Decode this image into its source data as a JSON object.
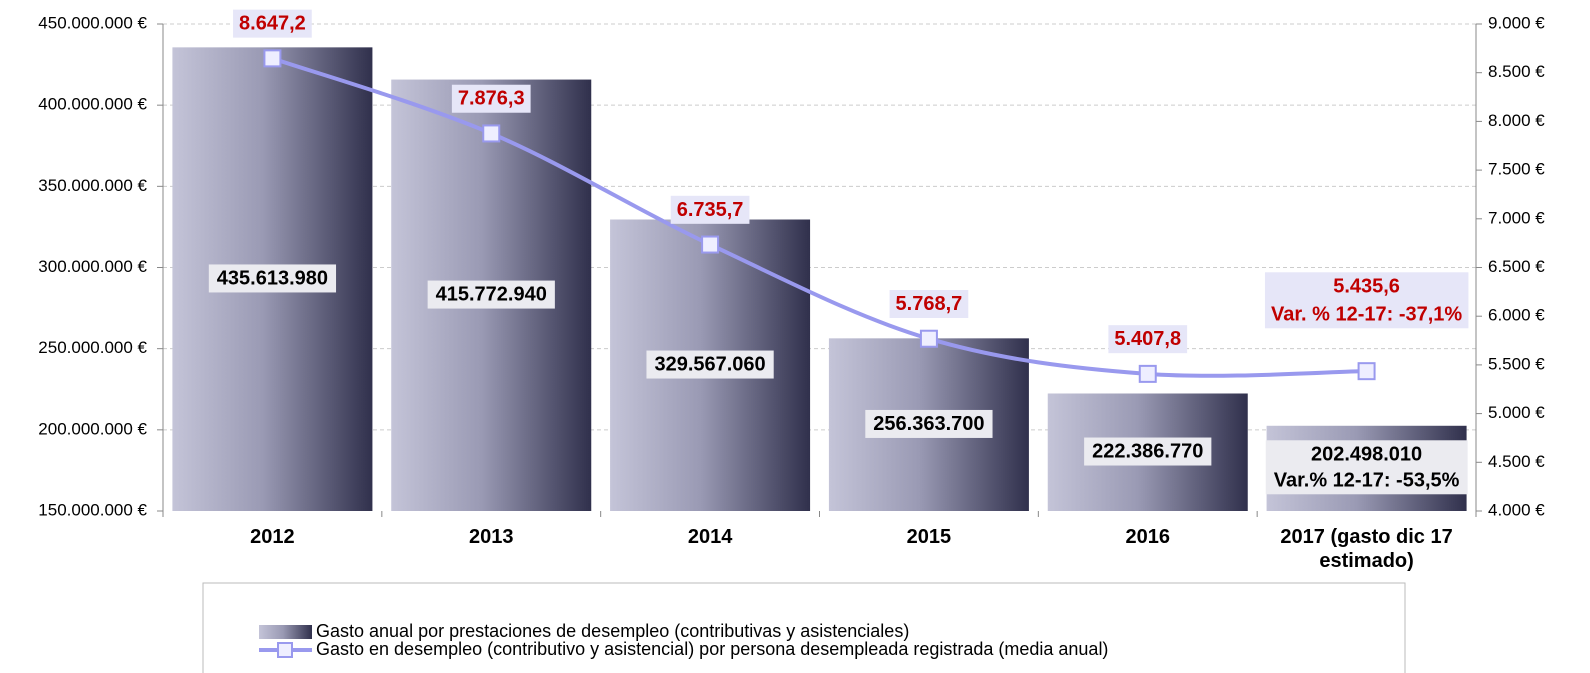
{
  "chart_data": {
    "type": "bar-line",
    "categories": [
      "2012",
      "2013",
      "2014",
      "2015",
      "2016",
      "2017 (gasto dic 17 estimado)"
    ],
    "series": [
      {
        "name": "Gasto anual por prestaciones de desempleo (contributivas y asistenciales)",
        "type": "bar",
        "color": "#4a4a6a",
        "values": [
          435613980,
          415772940,
          329567060,
          256363700,
          222386770,
          202498010
        ],
        "value_labels": [
          "435.613.980",
          "415.772.940",
          "329.567.060",
          "256.363.700",
          "222.386.770",
          "202.498.010"
        ]
      },
      {
        "name": "Gasto en desempleo (contributivo y asistencial) por persona desempleada registrada (media anual)",
        "type": "line",
        "axis": "y2",
        "color": "#9999ee",
        "values": [
          8647.2,
          7876.3,
          6735.7,
          5768.7,
          5407.8,
          5435.6
        ],
        "value_labels": [
          "8.647,2",
          "7.876,3",
          "6.735,7",
          "5.768,7",
          "5.407,8",
          "5.435,6"
        ]
      }
    ],
    "annotations": [
      "Var.% 12-17: -53,5%",
      "Var. % 12-17: -37,1%"
    ],
    "ylim": [
      150000000,
      450000000
    ],
    "yticks": [
      {
        "value": 150000000,
        "label": "150.000.000 €"
      },
      {
        "value": 200000000,
        "label": "200.000.000 €"
      },
      {
        "value": 250000000,
        "label": "250.000.000 €"
      },
      {
        "value": 300000000,
        "label": "300.000.000 €"
      },
      {
        "value": 350000000,
        "label": "350.000.000 €"
      },
      {
        "value": 400000000,
        "label": "400.000.000 €"
      },
      {
        "value": 450000000,
        "label": "450.000.000 €"
      }
    ],
    "y2lim": [
      4000,
      9000
    ],
    "y2ticks": [
      {
        "value": 4000,
        "label": "4.000 €"
      },
      {
        "value": 4500,
        "label": "4.500 €"
      },
      {
        "value": 5000,
        "label": "5.000 €"
      },
      {
        "value": 5500,
        "label": "5.500 €"
      },
      {
        "value": 6000,
        "label": "6.000 €"
      },
      {
        "value": 6500,
        "label": "6.500 €"
      },
      {
        "value": 7000,
        "label": "7.000 €"
      },
      {
        "value": 7500,
        "label": "7.500 €"
      },
      {
        "value": 8000,
        "label": "8.000 €"
      },
      {
        "value": 8500,
        "label": "8.500 €"
      },
      {
        "value": 9000,
        "label": "9.000 €"
      }
    ],
    "grid": true,
    "legend": "bottom"
  }
}
